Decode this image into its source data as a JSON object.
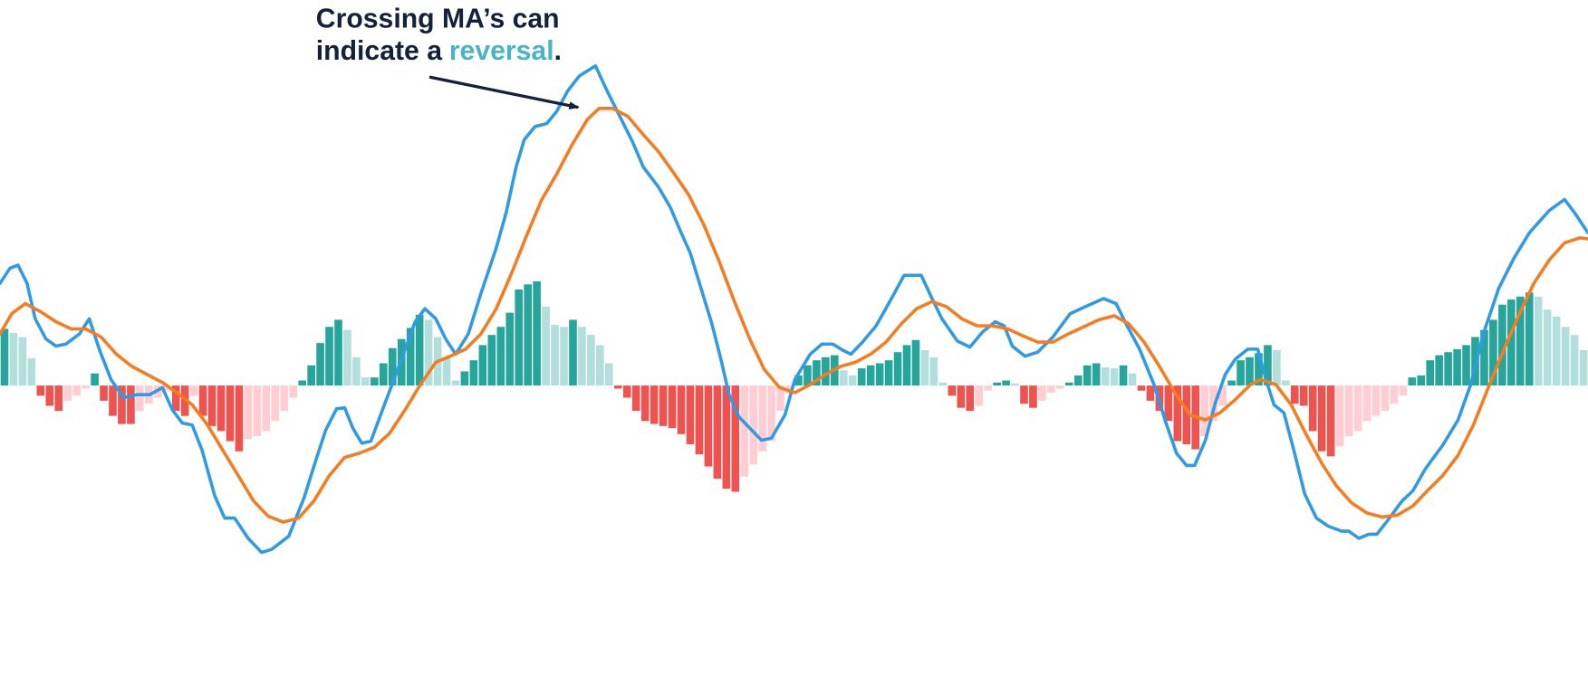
{
  "chart_data": {
    "type": "macd",
    "annotation": [
      "Crossing MA’s can",
      "indicate a",
      "reversal",
      "."
    ],
    "annotation_color": "#14213d",
    "highlight_color": "#47b5c2",
    "xlim": [
      0,
      176
    ],
    "ylim": [
      -286,
      381
    ],
    "histogram": {
      "colors": {
        "rising_positive": "#26a69a",
        "falling_positive": "#b2dfdb",
        "falling_negative": "#ef5350",
        "rising_negative": "#ffcdd2"
      },
      "values": [
        56,
        52,
        48,
        27,
        -10,
        -20,
        -25,
        -15,
        -10,
        -3,
        12,
        -15,
        -30,
        -38,
        -38,
        -25,
        -18,
        -12,
        -5,
        -25,
        -30,
        -10,
        -30,
        -40,
        -45,
        -55,
        -65,
        -53,
        -50,
        -45,
        -35,
        -25,
        -12,
        5,
        20,
        42,
        58,
        65,
        55,
        28,
        8,
        8,
        22,
        37,
        46,
        57,
        70,
        65,
        48,
        28,
        5,
        14,
        25,
        40,
        50,
        58,
        72,
        95,
        100,
        103,
        78,
        60,
        58,
        65,
        58,
        50,
        40,
        22,
        -3,
        -12,
        -25,
        -35,
        -38,
        -40,
        -42,
        -48,
        -58,
        -68,
        -80,
        -92,
        -102,
        -105,
        -90,
        -78,
        -65,
        -55,
        -25,
        -8,
        10,
        20,
        25,
        28,
        30,
        15,
        10,
        17,
        20,
        22,
        25,
        33,
        40,
        45,
        35,
        28,
        3,
        -10,
        -22,
        -25,
        -20,
        -5,
        3,
        5,
        2,
        -18,
        -22,
        -15,
        -7,
        -3,
        3,
        10,
        20,
        22,
        18,
        17,
        20,
        12,
        -5,
        -15,
        -25,
        -35,
        -55,
        -58,
        -63,
        -50,
        -35,
        -20,
        5,
        25,
        28,
        32,
        40,
        35,
        5,
        -18,
        -20,
        -45,
        -65,
        -70,
        -60,
        -50,
        -45,
        -35,
        -30,
        -25,
        -18,
        -10,
        8,
        10,
        25,
        30,
        33,
        36,
        40,
        48,
        55,
        65,
        80,
        85,
        88,
        92,
        88,
        75,
        68,
        58,
        50,
        35
      ]
    },
    "series": [
      {
        "color": "#2f9be6",
        "x": [
          0,
          1.1,
          2,
          3,
          3.9,
          5.1,
          6.2,
          7.3,
          8.8,
          9.9,
          11,
          12.3,
          13.7,
          15.2,
          16.6,
          18,
          19.1,
          20.2,
          21.3,
          22.4,
          23.8,
          24.9,
          26,
          27.5,
          29,
          30.1,
          32,
          33.7,
          35,
          36.1,
          37.3,
          38.2,
          39.1,
          40.1,
          41.1,
          42.6,
          44.3,
          46,
          47.1,
          48.3,
          49.4,
          50.5,
          51.9,
          53.3,
          55,
          56.1,
          57.2,
          58.1,
          59.3,
          60.6,
          61.7,
          62.9,
          64.2,
          66,
          67.3,
          68.7,
          70.1,
          71.3,
          73,
          74.3,
          75.4,
          76.5,
          77.7,
          78.9,
          79.9,
          80.8,
          81.9,
          83.3,
          84.4,
          85.5,
          87,
          88.1,
          89.8,
          91.1,
          92.3,
          93.4,
          94.3,
          95.6,
          97.1,
          98.8,
          100.2,
          102.1,
          103.3,
          104.4,
          106.1,
          107.5,
          108.9,
          110.3,
          111.3,
          112.2,
          113.6,
          115,
          116.7,
          118.6,
          120.3,
          122.3,
          123.7,
          124.8,
          126.3,
          127.9,
          129.3,
          130.4,
          131.5,
          132.4,
          133.6,
          134.7,
          135.8,
          136.9,
          138.3,
          139.4,
          140.3,
          141.2,
          142.3,
          143.4,
          144.6,
          145.9,
          147.2,
          148.7,
          149.5,
          150.6,
          151.7,
          152.6,
          154,
          155.4,
          156.6,
          158,
          159.9,
          161.6,
          163,
          164.4,
          166.1,
          167.8,
          169.5,
          171.7,
          173.4,
          174.5,
          176
        ],
        "values": [
          101,
          116,
          119,
          101,
          66,
          46,
          39,
          41,
          51,
          66,
          36,
          6,
          -12,
          -9,
          -9,
          -2,
          -24,
          -37,
          -39,
          -64,
          -109,
          -131,
          -131,
          -151,
          -165,
          -162,
          -149,
          -111,
          -74,
          -44,
          -23,
          -22,
          -42,
          -57,
          -55,
          -19,
          21,
          63,
          76,
          66,
          46,
          31,
          51,
          91,
          136,
          171,
          216,
          243,
          256,
          259,
          271,
          291,
          306,
          316,
          291,
          266,
          241,
          216,
          196,
          176,
          153,
          131,
          96,
          61,
          26,
          -9,
          -31,
          -44,
          -54,
          -52,
          -29,
          6,
          31,
          41,
          41,
          35,
          31,
          43,
          59,
          86,
          109,
          109,
          86,
          66,
          44,
          38,
          53,
          63,
          59,
          39,
          29,
          33,
          48,
          71,
          78,
          86,
          81,
          61,
          36,
          1,
          -39,
          -67,
          -79,
          -79,
          -54,
          -17,
          11,
          26,
          36,
          36,
          6,
          -19,
          -27,
          -64,
          -107,
          -131,
          -139,
          -144,
          -144,
          -151,
          -147,
          -147,
          -131,
          -114,
          -104,
          -82,
          -59,
          -34,
          1,
          51,
          96,
          126,
          151,
          173,
          184,
          171,
          151
        ]
      },
      {
        "color": "#f57c1f",
        "x": [
          0,
          1.3,
          2.8,
          4.5,
          6.2,
          7.9,
          9.5,
          11.2,
          12.9,
          14.6,
          16.3,
          18,
          19.6,
          21.3,
          23,
          24.7,
          26.4,
          28.1,
          29.7,
          31.4,
          33.1,
          34.8,
          36.5,
          38.2,
          39.8,
          41.5,
          43.2,
          44.9,
          46.6,
          48.3,
          49.9,
          51.6,
          53.3,
          55,
          56.7,
          58.4,
          60,
          61.7,
          63.4,
          65.1,
          66.4,
          67.9,
          69.6,
          71.3,
          73,
          74.6,
          76.3,
          78,
          79.7,
          81.4,
          83.1,
          84.7,
          86.4,
          88.1,
          89.8,
          91.5,
          93.2,
          94.8,
          96.5,
          98.2,
          99.9,
          101.6,
          103.3,
          104.9,
          106.6,
          108.3,
          110,
          111.7,
          113.4,
          115,
          116.7,
          118.4,
          120.1,
          121.8,
          123.5,
          125.1,
          126.8,
          128.5,
          130.2,
          131.9,
          133.6,
          135.2,
          136.9,
          138.6,
          139.7,
          141.4,
          143.1,
          144.8,
          146.5,
          148.1,
          149.8,
          151.5,
          153.2,
          154.9,
          156.6,
          158.2,
          159.9,
          161.6,
          163.3,
          165,
          166.7,
          168.4,
          170,
          171.7,
          173.4,
          175.1,
          176
        ],
        "values": [
          51,
          71,
          81,
          73,
          63,
          56,
          56,
          48,
          31,
          19,
          11,
          3,
          -7,
          -19,
          -39,
          -64,
          -89,
          -114,
          -129,
          -135,
          -131,
          -114,
          -89,
          -71,
          -67,
          -61,
          -47,
          -24,
          1,
          23,
          29,
          36,
          51,
          76,
          111,
          149,
          183,
          209,
          238,
          263,
          274,
          274,
          266,
          248,
          231,
          211,
          189,
          159,
          123,
          83,
          46,
          16,
          -2,
          -7,
          1,
          11,
          19,
          23,
          31,
          43,
          61,
          76,
          83,
          78,
          66,
          59,
          59,
          56,
          49,
          43,
          43,
          51,
          58,
          65,
          69,
          61,
          43,
          19,
          -7,
          -29,
          -34,
          -27,
          -14,
          1,
          6,
          1,
          -19,
          -49,
          -77,
          -99,
          -116,
          -126,
          -130,
          -128,
          -119,
          -104,
          -89,
          -69,
          -39,
          -1,
          36,
          71,
          101,
          124,
          141,
          146,
          145
        ]
      }
    ]
  }
}
